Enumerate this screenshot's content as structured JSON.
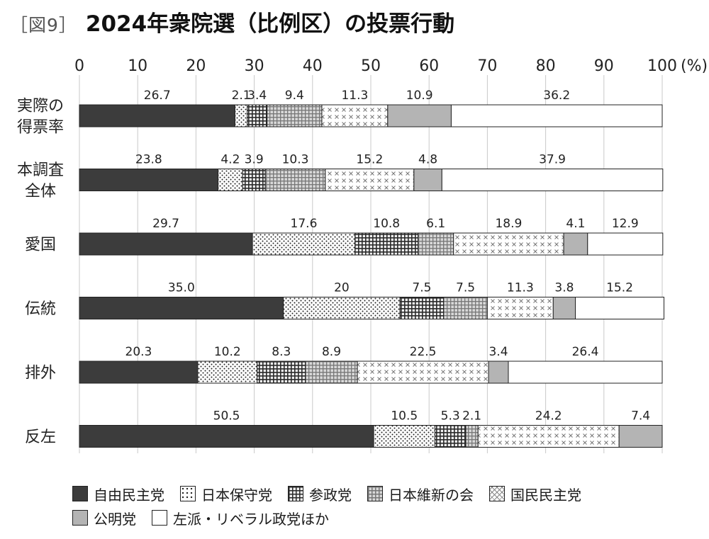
{
  "header": {
    "fig_label": "［図9］",
    "title": "2024年衆院選（比例区）の投票行動"
  },
  "chart_data": {
    "type": "bar",
    "orientation": "horizontal",
    "stacked": true,
    "title": "2024年衆院選（比例区）の投票行動",
    "xlabel": "",
    "ylabel": "",
    "xlim": [
      0,
      100
    ],
    "unit": "(%)",
    "x_ticks": [
      0,
      10,
      20,
      30,
      40,
      50,
      60,
      70,
      80,
      90,
      100
    ],
    "x_tick_labels": [
      "0",
      "10",
      "20",
      "30",
      "40",
      "50",
      "60",
      "70",
      "80",
      "90",
      "100"
    ],
    "grid": true,
    "legend_position": "bottom",
    "categories": [
      [
        "実際の",
        "得票率"
      ],
      [
        "本調査",
        "全体"
      ],
      [
        "愛国"
      ],
      [
        "伝統"
      ],
      [
        "排外"
      ],
      [
        "反左"
      ]
    ],
    "series": [
      {
        "name": "自由民主党",
        "fill": "solid",
        "color": "#3c3c3c",
        "values": [
          26.7,
          23.8,
          29.7,
          35.0,
          20.3,
          50.5
        ],
        "labels": [
          "26.7",
          "23.8",
          "29.7",
          "35.0",
          "20.3",
          "50.5"
        ]
      },
      {
        "name": "日本保守党",
        "fill": "dots",
        "color": "#ffffff",
        "values": [
          2.1,
          4.2,
          17.6,
          20,
          10.2,
          10.5
        ],
        "labels": [
          "2.1",
          "4.2",
          "17.6",
          "20",
          "10.2",
          "10.5"
        ]
      },
      {
        "name": "参政党",
        "fill": "dense-grid",
        "color": "#555555",
        "values": [
          3.4,
          3.9,
          10.8,
          7.5,
          8.3,
          5.3
        ],
        "labels": [
          "3.4",
          "3.9",
          "10.8",
          "7.5",
          "8.3",
          "5.3"
        ]
      },
      {
        "name": "日本維新の会",
        "fill": "light-grid",
        "color": "#9a9a9a",
        "values": [
          9.4,
          10.3,
          6.1,
          7.5,
          8.9,
          2.1
        ],
        "labels": [
          "9.4",
          "10.3",
          "6.1",
          "7.5",
          "8.9",
          "2.1"
        ]
      },
      {
        "name": "国民民主党",
        "fill": "crosses",
        "color": "#ffffff",
        "values": [
          11.3,
          15.2,
          18.9,
          11.3,
          22.5,
          24.2
        ],
        "labels": [
          "11.3",
          "15.2",
          "18.9",
          "11.3",
          "22.5",
          "24.2"
        ]
      },
      {
        "name": "公明党",
        "fill": "solid",
        "color": "#b4b4b4",
        "values": [
          10.9,
          4.8,
          4.1,
          3.8,
          3.4,
          7.4
        ],
        "labels": [
          "10.9",
          "4.8",
          "4.1",
          "3.8",
          "3.4",
          "7.4"
        ]
      },
      {
        "name": "左派・リベラル政党ほか",
        "fill": "solid",
        "color": "#ffffff",
        "values": [
          36.2,
          37.9,
          12.9,
          15.2,
          26.4,
          0
        ],
        "labels": [
          "36.2",
          "37.9",
          "12.9",
          "15.2",
          "26.4",
          ""
        ]
      }
    ]
  }
}
